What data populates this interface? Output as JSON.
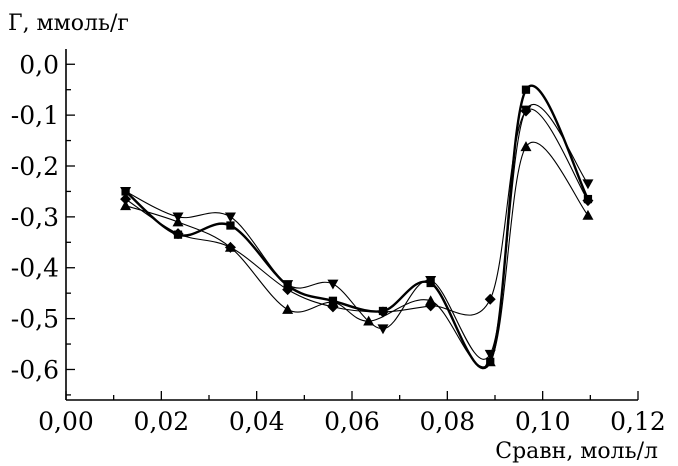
{
  "chart_data": {
    "type": "line",
    "title": "",
    "xlabel": "Cравн, моль/л",
    "ylabel": "Г, ммоль/г",
    "xlim": [
      0.0,
      0.12
    ],
    "ylim": [
      -0.66,
      0.03
    ],
    "x_ticks": [
      "0,00",
      "0,02",
      "0,04",
      "0,06",
      "0,08",
      "0,10",
      "0,12"
    ],
    "y_ticks": [
      "0,0",
      "-0,1",
      "-0,2",
      "-0,3",
      "-0,4",
      "-0,5",
      "-0,6"
    ],
    "x_tick_values": [
      0.0,
      0.02,
      0.04,
      0.06,
      0.08,
      0.1,
      0.12
    ],
    "y_tick_values": [
      0.0,
      -0.1,
      -0.2,
      -0.3,
      -0.4,
      -0.5,
      -0.6
    ],
    "grid": false,
    "legend": "none",
    "smooth": true,
    "series": [
      {
        "marker": "square",
        "line": "thick",
        "x": [
          0.0125,
          0.0235,
          0.0345,
          0.0465,
          0.056,
          0.0665,
          0.0765,
          0.089,
          0.0965,
          0.1095
        ],
        "y": [
          -0.25,
          -0.335,
          -0.317,
          -0.435,
          -0.465,
          -0.485,
          -0.43,
          -0.585,
          -0.05,
          -0.265
        ]
      },
      {
        "marker": "triangle-down",
        "line": "thin",
        "x": [
          0.0125,
          0.0235,
          0.0345,
          0.0465,
          0.056,
          0.0665,
          0.0765,
          0.089,
          0.0965,
          0.1095
        ],
        "y": [
          -0.25,
          -0.3,
          -0.3,
          -0.433,
          -0.432,
          -0.52,
          -0.425,
          -0.57,
          -0.09,
          -0.235
        ]
      },
      {
        "marker": "diamond",
        "line": "thin",
        "x": [
          0.0125,
          0.0235,
          0.0345,
          0.0465,
          0.056,
          0.0665,
          0.0765,
          0.089,
          0.0965,
          0.1095
        ],
        "y": [
          -0.265,
          -0.333,
          -0.36,
          -0.443,
          -0.477,
          -0.487,
          -0.475,
          -0.462,
          -0.092,
          -0.268
        ]
      },
      {
        "marker": "triangle-up",
        "line": "thin",
        "x": [
          0.0125,
          0.0235,
          0.0345,
          0.0465,
          0.056,
          0.0635,
          0.0765,
          0.089,
          0.0965,
          0.1095
        ],
        "y": [
          -0.278,
          -0.31,
          -0.36,
          -0.482,
          -0.468,
          -0.505,
          -0.465,
          -0.585,
          -0.162,
          -0.297
        ]
      }
    ]
  }
}
